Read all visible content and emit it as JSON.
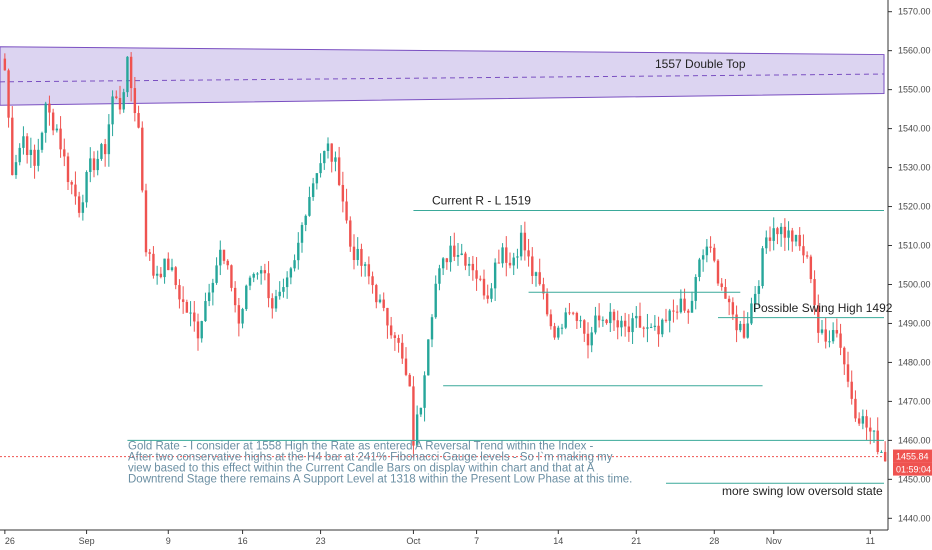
{
  "chart_data": {
    "type": "candlestick",
    "ylim": [
      1437,
      1573
    ],
    "y_ticks": [
      1440,
      1450,
      1460,
      1470,
      1480,
      1490,
      1500,
      1510,
      1520,
      1530,
      1540,
      1550,
      1560,
      1570
    ],
    "x_ticks": [
      {
        "i": 0,
        "label": "26"
      },
      {
        "i": 22,
        "label": "Sep"
      },
      {
        "i": 44,
        "label": "9"
      },
      {
        "i": 64,
        "label": "16"
      },
      {
        "i": 85,
        "label": "23"
      },
      {
        "i": 110,
        "label": "Oct"
      },
      {
        "i": 127,
        "label": "7"
      },
      {
        "i": 149,
        "label": "14"
      },
      {
        "i": 170,
        "label": "21"
      },
      {
        "i": 191,
        "label": "28"
      },
      {
        "i": 207,
        "label": "Nov"
      },
      {
        "i": 233,
        "label": "11"
      }
    ],
    "n_bars": 238,
    "bar_colors": {
      "up": "#26a69a",
      "down": "#ef5350"
    },
    "price_path": [
      [
        0,
        1555
      ],
      [
        2,
        1530
      ],
      [
        5,
        1538
      ],
      [
        8,
        1530
      ],
      [
        11,
        1545
      ],
      [
        14,
        1540
      ],
      [
        17,
        1528
      ],
      [
        20,
        1520
      ],
      [
        23,
        1530
      ],
      [
        27,
        1535
      ],
      [
        29,
        1548
      ],
      [
        31,
        1546
      ],
      [
        33,
        1556
      ],
      [
        36,
        1540
      ],
      [
        38,
        1510
      ],
      [
        40,
        1503
      ],
      [
        44,
        1505
      ],
      [
        48,
        1495
      ],
      [
        52,
        1488
      ],
      [
        55,
        1500
      ],
      [
        58,
        1508
      ],
      [
        61,
        1500
      ],
      [
        63,
        1490
      ],
      [
        66,
        1502
      ],
      [
        69,
        1505
      ],
      [
        72,
        1495
      ],
      [
        75,
        1497
      ],
      [
        78,
        1505
      ],
      [
        81,
        1520
      ],
      [
        84,
        1530
      ],
      [
        87,
        1535
      ],
      [
        90,
        1528
      ],
      [
        93,
        1510
      ],
      [
        96,
        1505
      ],
      [
        99,
        1500
      ],
      [
        102,
        1492
      ],
      [
        105,
        1488
      ],
      [
        107,
        1480
      ],
      [
        109,
        1472
      ],
      [
        110,
        1460
      ],
      [
        112,
        1470
      ],
      [
        114,
        1488
      ],
      [
        116,
        1500
      ],
      [
        118,
        1505
      ],
      [
        120,
        1510
      ],
      [
        123,
        1508
      ],
      [
        126,
        1505
      ],
      [
        128,
        1500
      ],
      [
        130,
        1498
      ],
      [
        132,
        1505
      ],
      [
        134,
        1510
      ],
      [
        136,
        1505
      ],
      [
        139,
        1512
      ],
      [
        142,
        1503
      ],
      [
        145,
        1497
      ],
      [
        147,
        1490
      ],
      [
        149,
        1487
      ],
      [
        151,
        1495
      ],
      [
        154,
        1493
      ],
      [
        157,
        1485
      ],
      [
        159,
        1490
      ],
      [
        162,
        1492
      ],
      [
        165,
        1489
      ],
      [
        168,
        1488
      ],
      [
        170,
        1490
      ],
      [
        173,
        1488
      ],
      [
        176,
        1487
      ],
      [
        178,
        1490
      ],
      [
        181,
        1495
      ],
      [
        184,
        1492
      ],
      [
        187,
        1505
      ],
      [
        189,
        1510
      ],
      [
        191,
        1505
      ],
      [
        193,
        1500
      ],
      [
        195,
        1493
      ],
      [
        197,
        1490
      ],
      [
        199,
        1488
      ],
      [
        201,
        1495
      ],
      [
        203,
        1502
      ],
      [
        205,
        1512
      ],
      [
        207,
        1515
      ],
      [
        209,
        1514
      ],
      [
        212,
        1512
      ],
      [
        215,
        1508
      ],
      [
        217,
        1503
      ],
      [
        219,
        1488
      ],
      [
        221,
        1485
      ],
      [
        223,
        1490
      ],
      [
        225,
        1485
      ],
      [
        227,
        1475
      ],
      [
        229,
        1468
      ],
      [
        231,
        1465
      ],
      [
        233,
        1462
      ],
      [
        235,
        1459
      ],
      [
        237,
        1456
      ]
    ],
    "annotations": {
      "double_top_label": "1557 Double Top",
      "current_rl_label": "Current R - L 1519",
      "swing_high_label": "Possible Swing High 1492",
      "swing_low_label": "more swing low oversold state"
    },
    "note_lines": [
      "Gold Rate - I consider at 1558 High the Rate as entered A Reversal Trend within the Index -",
      "After two conservative highs at the H4 bar at 241% Fibonacci Gauge levels - So I`m making my",
      "view based to this effect within the Current Candle Bars on display within chart and that at A",
      "Downtrend Stage there remains A Support Level at 1318 within the Present Low Phase at this time."
    ],
    "current_price": {
      "value": 1455.84,
      "label": "1455.84"
    },
    "countdown": {
      "label": "01:59:04"
    },
    "colors": {
      "channel_fill": "#d6cdef",
      "channel_stroke": "#7a4fc1",
      "line_teal": "#3aa99a",
      "price_line": "#ef5350",
      "badge_price": "#ef5350",
      "badge_time": "#ef5350",
      "axis": "#333333",
      "note_text": "#6b8fa3"
    }
  }
}
